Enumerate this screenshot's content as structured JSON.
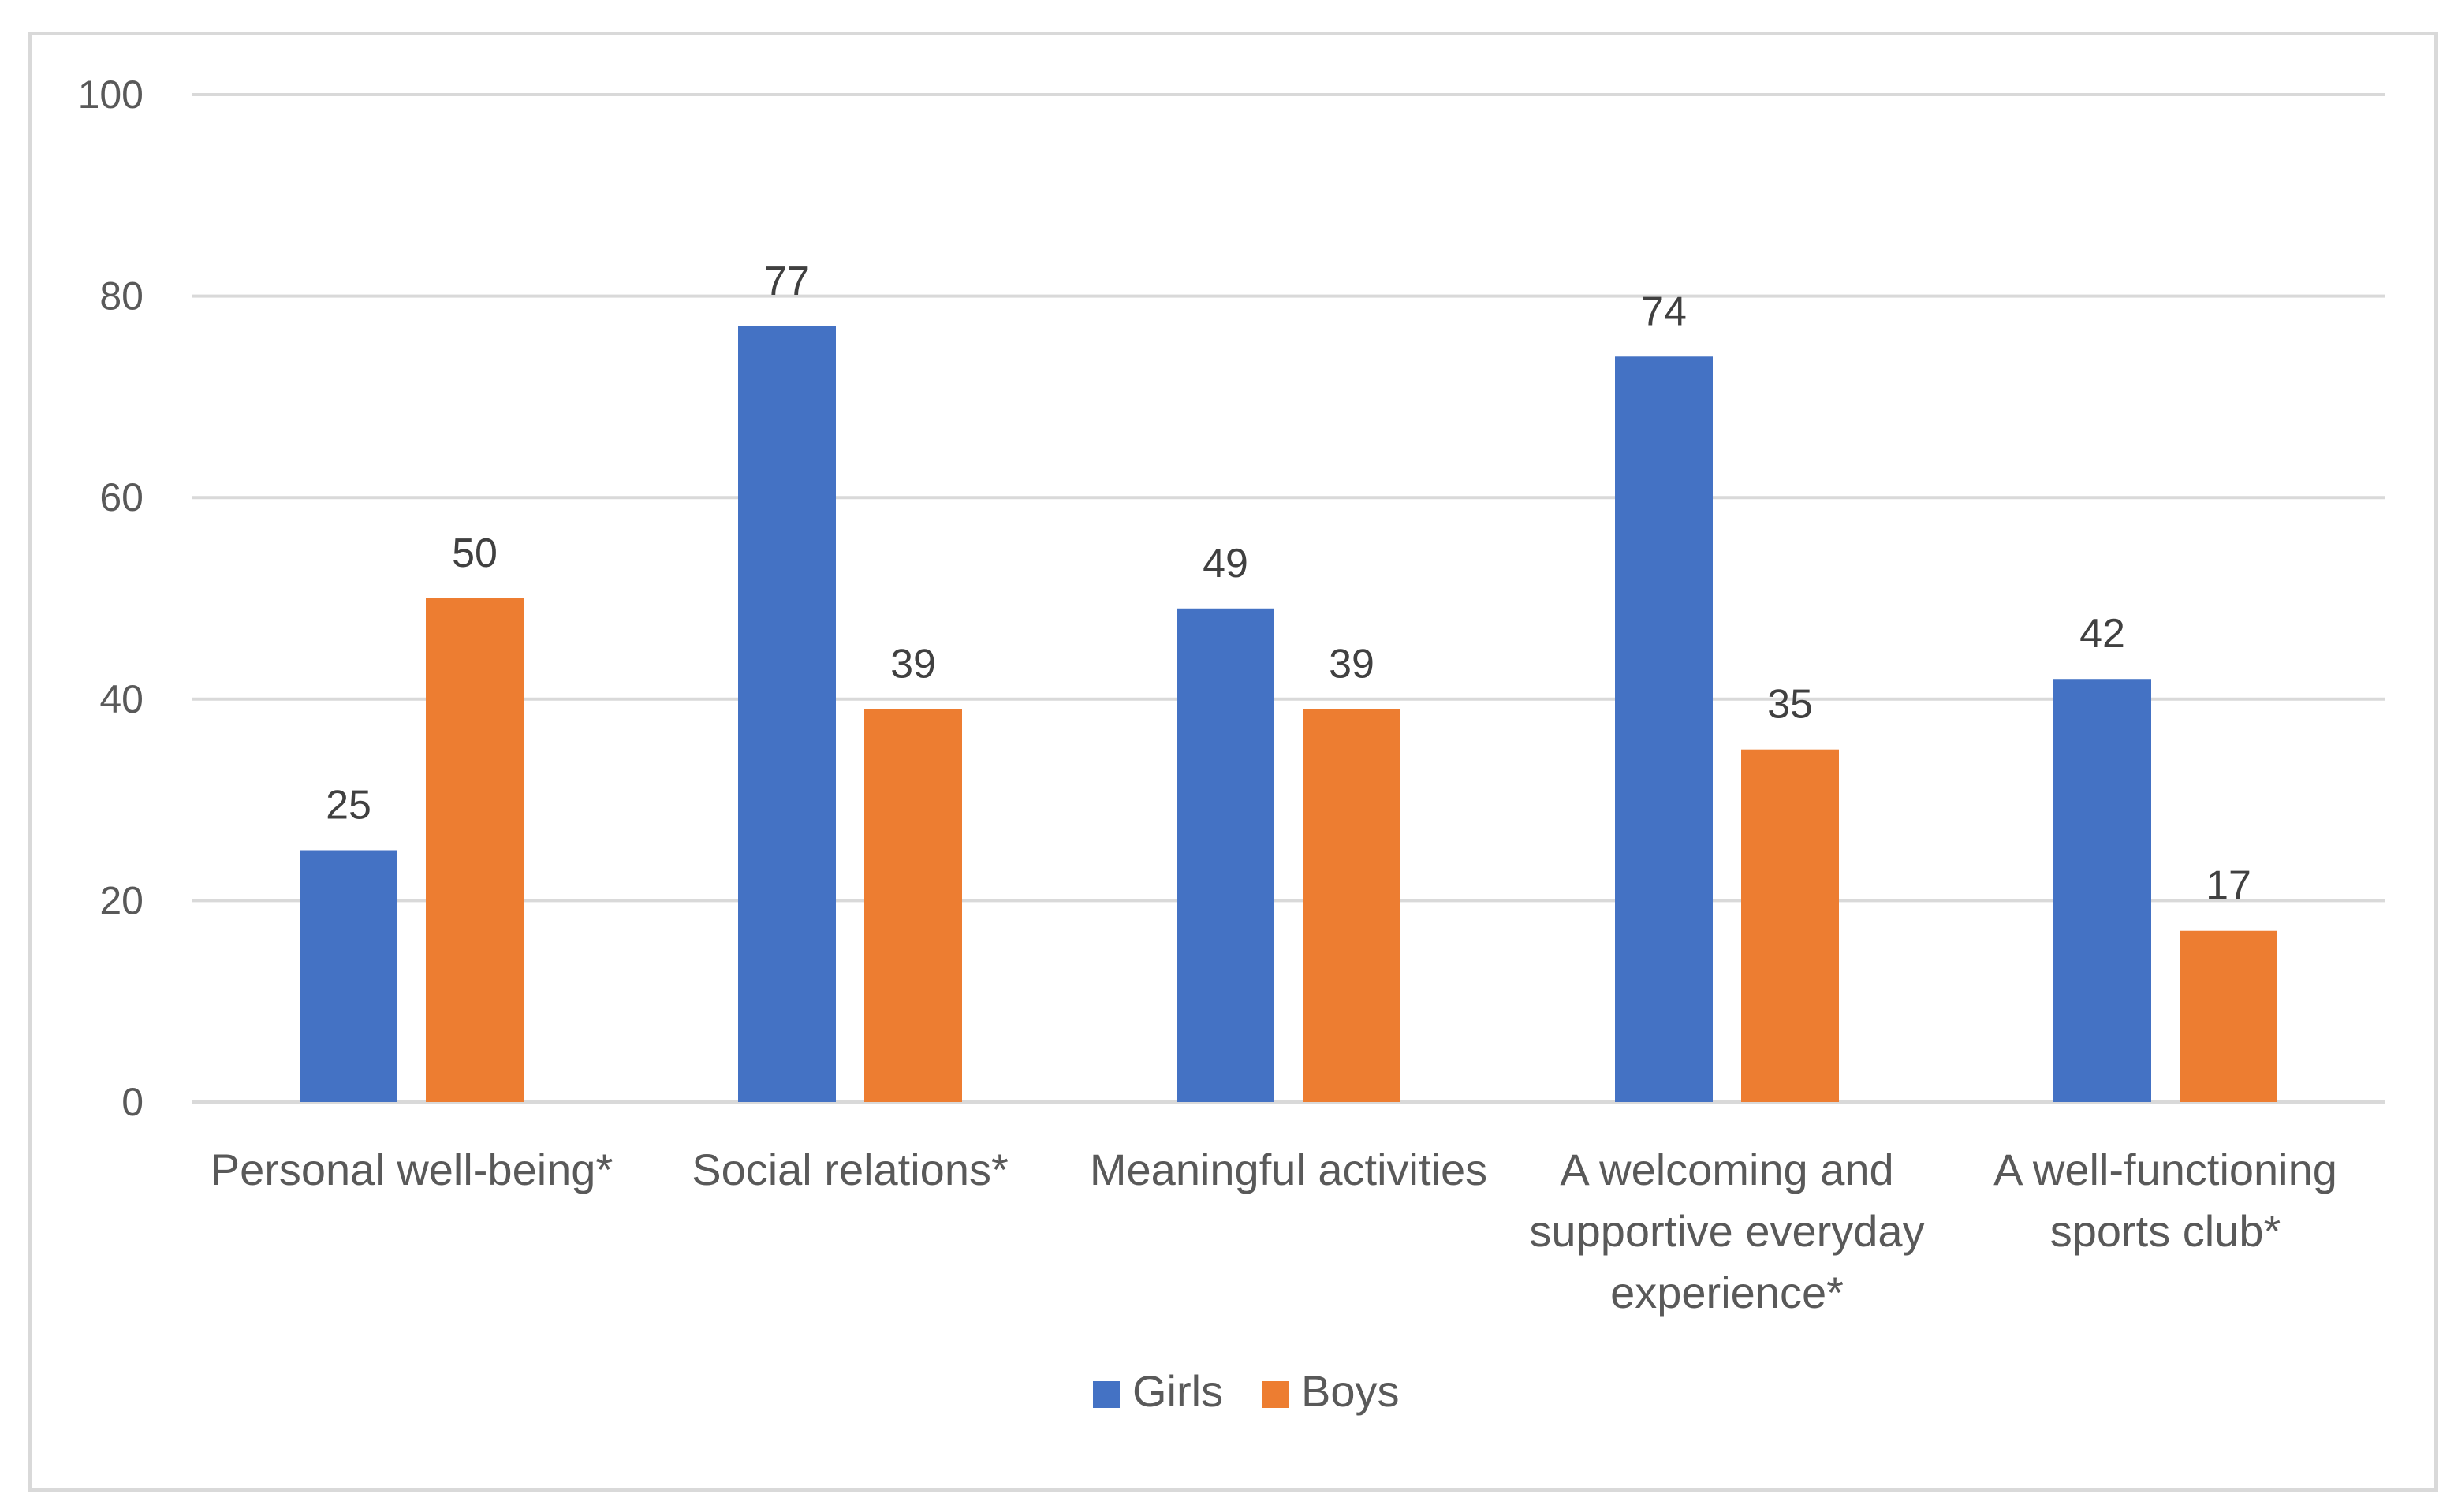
{
  "chart_data": {
    "type": "bar",
    "title": "",
    "xlabel": "",
    "ylabel": "",
    "ylim": [
      0,
      100
    ],
    "yticks": [
      "0",
      "20",
      "40",
      "60",
      "80",
      "100"
    ],
    "grid": true,
    "legend_position": "bottom",
    "categories": [
      [
        "Personal well-being*"
      ],
      [
        "Social relations*"
      ],
      [
        "Meaningful activities"
      ],
      [
        "A welcoming and",
        "supportive everyday",
        "experience*"
      ],
      [
        "A well-functioning",
        "sports club*"
      ]
    ],
    "series": [
      {
        "name": "Girls",
        "color": "#4472c4",
        "values": [
          25,
          77,
          49,
          74,
          42
        ],
        "labels": [
          "25",
          "77",
          "49",
          "74",
          "42"
        ]
      },
      {
        "name": "Boys",
        "color": "#ed7d31",
        "values": [
          50,
          39,
          39,
          35,
          17
        ],
        "labels": [
          "50",
          "39",
          "39",
          "35",
          "17"
        ]
      }
    ]
  }
}
